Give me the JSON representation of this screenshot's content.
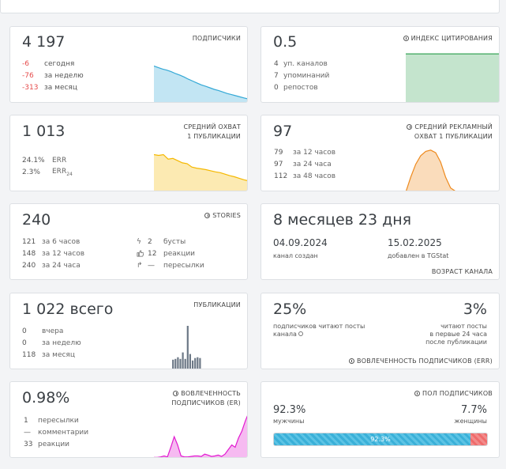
{
  "subscribers": {
    "value": "4 197",
    "title": "ПОДПИСЧИКИ",
    "rows": [
      {
        "value": "-6",
        "label": "сегодня"
      },
      {
        "value": "-76",
        "label": "за неделю"
      },
      {
        "value": "-313",
        "label": "за месяц"
      }
    ]
  },
  "citation": {
    "value": "0.5",
    "title": "ИНДЕКС ЦИТИРОВАНИЯ",
    "icon": "question-circle-icon",
    "rows": [
      {
        "value": "4",
        "label": "уп. каналов"
      },
      {
        "value": "7",
        "label": "упоминаний"
      },
      {
        "value": "0",
        "label": "репостов"
      }
    ]
  },
  "reach": {
    "value": "1 013",
    "title_line1": "СРЕДНИЙ ОХВАТ",
    "title_line2": "1 ПУБЛИКАЦИИ",
    "rows": [
      {
        "value": "24.1%",
        "label": "ERR",
        "sub": ""
      },
      {
        "value": "2.3%",
        "label": "ERR",
        "sub": "24"
      }
    ]
  },
  "ad_reach": {
    "value": "97",
    "title_line1": "СРЕДНИЙ РЕКЛАМНЫЙ",
    "title_line2": "ОХВАТ 1 ПУБЛИКАЦИИ",
    "icon": "question-circle-icon",
    "rows": [
      {
        "value": "79",
        "label": "за 12 часов"
      },
      {
        "value": "97",
        "label": "за 24 часа"
      },
      {
        "value": "112",
        "label": "за 48 часов"
      }
    ]
  },
  "stories": {
    "value": "240",
    "title": "STORIES",
    "icon": "question-circle-icon",
    "rows": [
      {
        "value": "121",
        "label": "за 6 часов"
      },
      {
        "value": "148",
        "label": "за 12 часов"
      },
      {
        "value": "240",
        "label": "за 24 часа"
      }
    ],
    "rows_right": [
      {
        "icon": "lightning-icon",
        "value": "2",
        "label": "бусты"
      },
      {
        "icon": "thumbs-up-icon",
        "value": "12",
        "label": "реакции"
      },
      {
        "icon": "share-arrow-icon",
        "value": "—",
        "label": "пересылки"
      }
    ]
  },
  "age": {
    "value": "8 месяцев 23 дня",
    "created_date": "04.09.2024",
    "created_label": "канал создан",
    "added_date": "15.02.2025",
    "added_label": "добавлен в TGStat",
    "title": "ВОЗРАСТ КАНАЛА"
  },
  "posts": {
    "value": "1 022",
    "suffix": "всего",
    "title": "ПУБЛИКАЦИИ",
    "rows": [
      {
        "value": "0",
        "label": "вчера"
      },
      {
        "value": "0",
        "label": "за неделю"
      },
      {
        "value": "118",
        "label": "за месяц"
      }
    ]
  },
  "err_block": {
    "left_value": "25%",
    "left_text_line1": "подписчиков читают посты",
    "left_text_line2": "канала",
    "right_value": "3%",
    "right_line1": "читают посты",
    "right_line2": "в первые 24 часа",
    "right_line3": "после публикации",
    "title": "ВОВЛЕЧЕННОСТЬ ПОДПИСЧИКОВ (ERR)",
    "icon": "question-circle-icon"
  },
  "er": {
    "value": "0.98%",
    "title_line1": "ВОВЛЕЧЕННОСТЬ",
    "title_line2": "ПОДПИСЧИКОВ (ER)",
    "icon": "question-circle-icon",
    "rows": [
      {
        "value": "1",
        "label": "пересылки"
      },
      {
        "value": "—",
        "label": "комментарии"
      },
      {
        "value": "33",
        "label": "реакции"
      }
    ]
  },
  "gender": {
    "title": "ПОЛ ПОДПИСЧИКОВ",
    "icon": "question-circle-icon",
    "male_value": "92.3%",
    "male_label": "мужчины",
    "female_value": "7.7%",
    "female_label": "женщины",
    "bar_label": "92.3%",
    "male_fraction": 0.923
  },
  "colors": {
    "red": "#e54b4b",
    "subscribers_chart": "#35a9d6",
    "citation_chart": "#3aa55a",
    "reach_chart": "#f5b800",
    "ad_reach_chart": "#ee8a1e",
    "posts_chart": "#6c7886",
    "er_chart": "#e21ad0"
  },
  "chart_data": [
    {
      "type": "area",
      "name": "subscribers-trend",
      "values": [
        100,
        96,
        92,
        89,
        85,
        80,
        76,
        71,
        65,
        60,
        55,
        50,
        46,
        42,
        38,
        35,
        31,
        27,
        24,
        21,
        18,
        15,
        12
      ],
      "ylim": [
        0,
        120
      ],
      "color": "#35a9d6"
    },
    {
      "type": "area",
      "name": "citation-trend",
      "values": [
        100,
        100,
        100,
        100,
        100,
        100,
        100,
        100,
        100,
        100,
        100,
        100
      ],
      "ylim": [
        0,
        105
      ],
      "color": "#3aa55a"
    },
    {
      "type": "area",
      "name": "reach-trend",
      "values": [
        100,
        98,
        100,
        88,
        90,
        84,
        78,
        76,
        67,
        64,
        62,
        60,
        57,
        54,
        52,
        48,
        44,
        41,
        37,
        33,
        30
      ],
      "ylim": [
        0,
        120
      ],
      "color": "#f5b800"
    },
    {
      "type": "area",
      "name": "ad-reach-trend",
      "values": [
        0,
        35,
        65,
        85,
        95,
        98,
        92,
        70,
        35,
        10,
        2,
        2,
        2,
        2,
        2,
        2,
        2,
        2,
        2,
        2
      ],
      "ylim": [
        0,
        105
      ],
      "color": "#ee8a1e"
    },
    {
      "type": "bar",
      "name": "posts-by-day",
      "values": [
        0,
        0,
        0,
        0,
        0,
        0,
        13,
        14,
        16,
        14,
        22,
        14,
        55,
        20,
        12,
        15,
        16,
        15,
        2,
        2,
        2,
        2,
        2,
        2,
        2,
        2,
        2,
        2,
        2,
        2,
        2,
        2,
        2,
        2,
        2,
        2
      ],
      "ylim": [
        0,
        56
      ],
      "color": "#6c7886"
    },
    {
      "type": "area",
      "name": "er-trend",
      "values": [
        3,
        3,
        4,
        6,
        4,
        25,
        48,
        30,
        6,
        4,
        4,
        5,
        6,
        6,
        5,
        10,
        8,
        5,
        6,
        8,
        5,
        10,
        20,
        30,
        25,
        45,
        60,
        82,
        100
      ],
      "ylim": [
        0,
        105
      ],
      "color": "#e21ad0"
    }
  ]
}
